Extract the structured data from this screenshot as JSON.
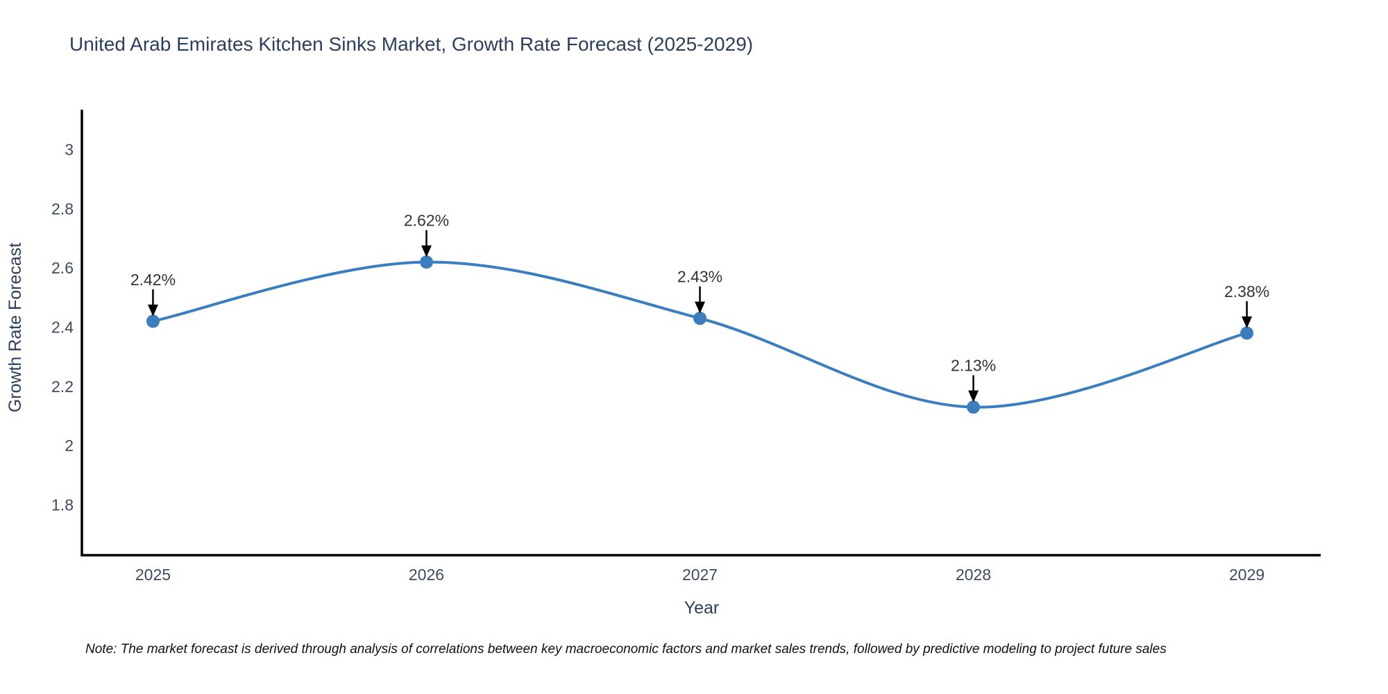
{
  "title": "United Arab Emirates Kitchen Sinks Market, Growth Rate Forecast (2025-2029)",
  "note": "Note: The market forecast is derived through analysis of correlations between key macroeconomic factors and market sales trends, followed by predictive modeling to project future sales",
  "colors": {
    "line": "#3a7ebf",
    "marker": "#3a7ebf",
    "title_text": "#2a3f5f",
    "axis_text": "#2a3f5f",
    "tick_text": "#3c4a63",
    "annotation_text": "#333333",
    "axis_line": "#000000",
    "arrow": "#000000",
    "background": "#ffffff"
  },
  "chart_data": {
    "type": "line",
    "title": "United Arab Emirates Kitchen Sinks Market, Growth Rate Forecast (2025-2029)",
    "xlabel": "Year",
    "ylabel": "Growth Rate Forecast",
    "x": [
      2025,
      2026,
      2027,
      2028,
      2029
    ],
    "series": [
      {
        "name": "Growth Rate Forecast",
        "values": [
          2.42,
          2.62,
          2.43,
          2.13,
          2.38
        ]
      }
    ],
    "point_labels": [
      "2.42%",
      "2.62%",
      "2.43%",
      "2.13%",
      "2.38%"
    ],
    "xticks": [
      2025,
      2026,
      2027,
      2028,
      2029
    ],
    "yticks": [
      1.8,
      2,
      2.2,
      2.4,
      2.6,
      2.8,
      3
    ],
    "xlim": [
      2024.74,
      2029.27
    ],
    "ylim": [
      1.63,
      3.13
    ],
    "line_shape": "spline",
    "grid": false,
    "legend": "none",
    "markers": true,
    "annotations_arrows": true
  }
}
